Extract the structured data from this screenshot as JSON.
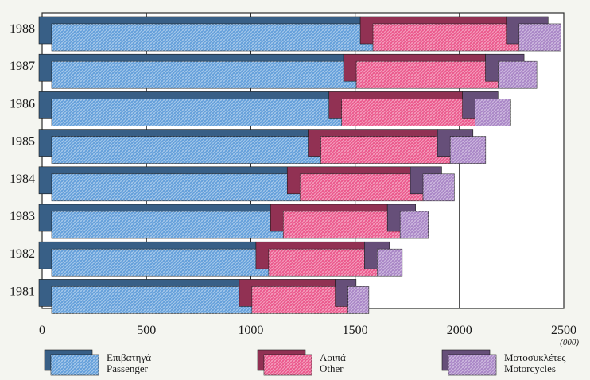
{
  "chart_data": {
    "type": "bar",
    "orientation": "horizontal",
    "stacked": true,
    "categories": [
      "1988",
      "1987",
      "1986",
      "1985",
      "1984",
      "1983",
      "1982",
      "1981"
    ],
    "series": [
      {
        "name": "Επιβατηγά",
        "name_en": "Passenger",
        "color": "#5b9ad8",
        "values": [
          1540,
          1460,
          1390,
          1290,
          1190,
          1110,
          1040,
          960
        ]
      },
      {
        "name": "Λοιπά",
        "name_en": "Other",
        "color": "#ea4f86",
        "values": [
          700,
          680,
          640,
          620,
          590,
          560,
          520,
          460
        ]
      },
      {
        "name": "Μοτοσυκλέτες",
        "name_en": "Motorcycles",
        "color": "#a47fc3",
        "values": [
          200,
          185,
          170,
          170,
          150,
          135,
          120,
          100
        ]
      }
    ],
    "xticks": [
      "0",
      "500",
      "1000",
      "1500",
      "2000",
      "2500"
    ],
    "xlim": [
      0,
      2500
    ],
    "unit": "(000)",
    "grid": true,
    "legend": "bottom"
  }
}
